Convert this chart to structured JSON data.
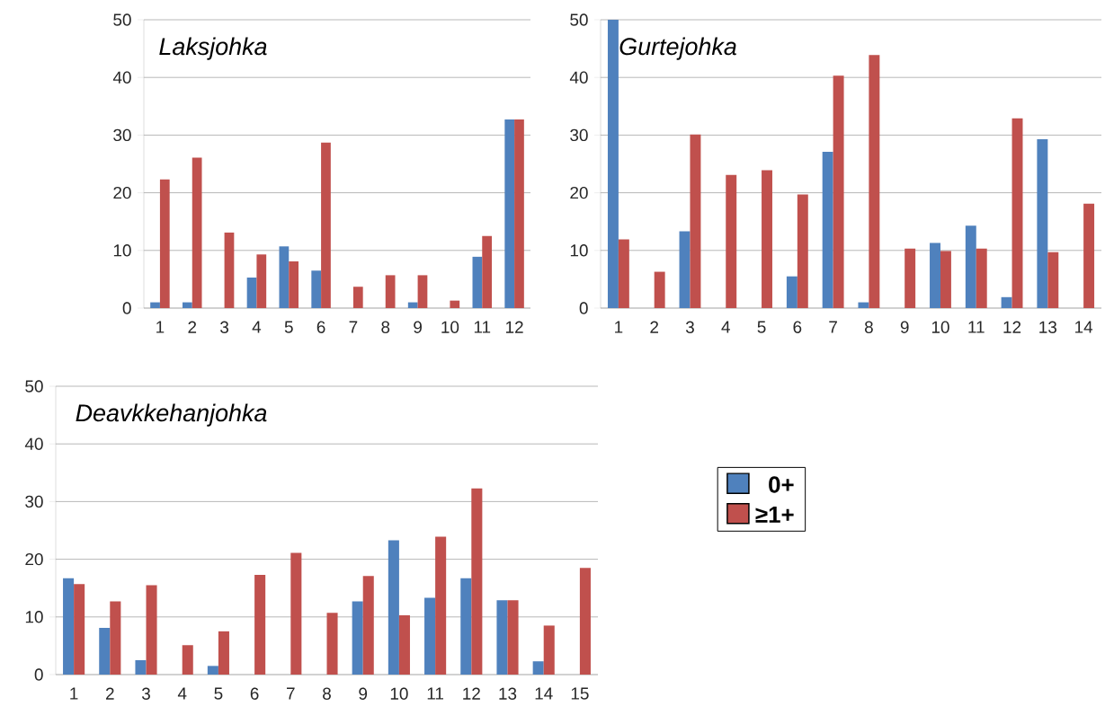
{
  "chart_data": [
    {
      "type": "bar",
      "title": "Laksjohka",
      "categories": [
        "1",
        "2",
        "3",
        "4",
        "5",
        "6",
        "7",
        "8",
        "9",
        "10",
        "11",
        "12"
      ],
      "series": [
        {
          "color": "#4f81bd",
          "values": [
            1,
            1,
            0,
            5.3,
            10.7,
            6.5,
            0,
            0,
            1,
            0,
            8.9,
            32.7
          ]
        },
        {
          "color": "#c0504d",
          "values": [
            22.3,
            26.1,
            13.1,
            9.3,
            8.1,
            28.7,
            3.7,
            5.7,
            5.7,
            1.3,
            12.5,
            32.7
          ]
        }
      ],
      "ylim": [
        0,
        50
      ],
      "yticks": [
        0,
        10,
        20,
        30,
        40,
        50
      ],
      "grid": "y"
    },
    {
      "type": "bar",
      "title": "Gurtejohka",
      "categories": [
        "1",
        "2",
        "3",
        "4",
        "5",
        "6",
        "7",
        "8",
        "9",
        "10",
        "11",
        "12",
        "13",
        "14"
      ],
      "series": [
        {
          "color": "#4f81bd",
          "values": [
            50,
            0,
            13.3,
            0,
            0,
            5.5,
            27.1,
            1,
            0,
            11.3,
            14.3,
            1.9,
            29.3,
            0
          ]
        },
        {
          "color": "#c0504d",
          "values": [
            11.9,
            6.3,
            30.1,
            23.1,
            23.9,
            19.7,
            40.3,
            43.9,
            10.3,
            9.9,
            10.3,
            32.9,
            9.7,
            18.1
          ]
        }
      ],
      "ylim": [
        0,
        50
      ],
      "yticks": [
        0,
        10,
        20,
        30,
        40,
        50
      ],
      "grid": "y"
    },
    {
      "type": "bar",
      "title": "Deavkkehanjohka",
      "categories": [
        "1",
        "2",
        "3",
        "4",
        "5",
        "6",
        "7",
        "8",
        "9",
        "10",
        "11",
        "12",
        "13",
        "14",
        "15"
      ],
      "series": [
        {
          "name": "0+",
          "color": "#4f81bd",
          "values": [
            16.7,
            8.1,
            2.5,
            0,
            1.5,
            0,
            0,
            0,
            12.7,
            23.3,
            13.3,
            16.7,
            12.9,
            2.3,
            0
          ]
        },
        {
          "name": "≥1+",
          "color": "#c0504d",
          "values": [
            15.7,
            12.7,
            15.5,
            5.1,
            7.5,
            17.3,
            21.1,
            10.7,
            17.1,
            10.3,
            23.9,
            32.3,
            12.9,
            8.5,
            18.5
          ]
        }
      ],
      "ylim": [
        0,
        50
      ],
      "yticks": [
        0,
        10,
        20,
        30,
        40,
        50
      ],
      "grid": "y",
      "legend": "right"
    }
  ]
}
